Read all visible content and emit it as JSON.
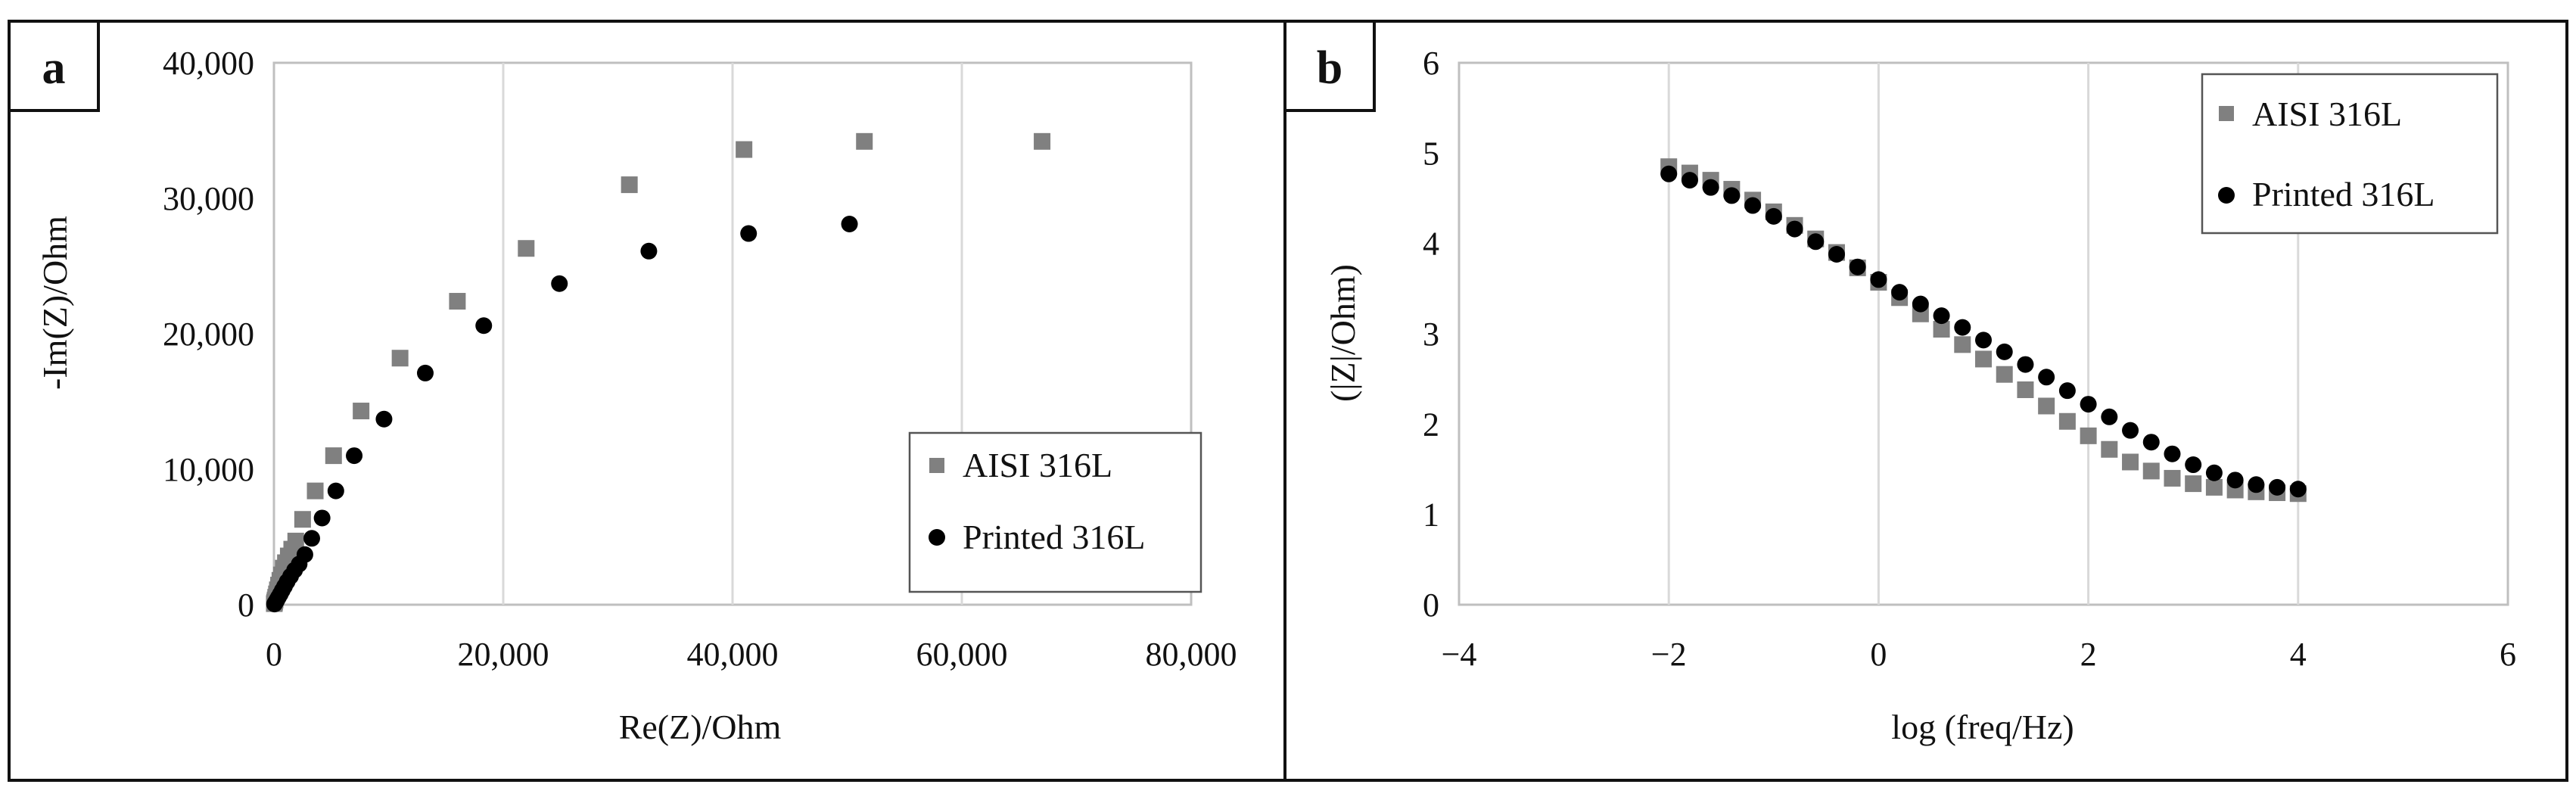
{
  "colors": {
    "aisi": "#808080",
    "printed": "#000000"
  },
  "chart_data": [
    {
      "type": "scatter",
      "panel_label": "a",
      "xlabel": "Re(Z)/Ohm",
      "ylabel": "-Im(Z)/Ohm",
      "xlim": [
        0,
        80000
      ],
      "ylim": [
        0,
        40000
      ],
      "xticks": [
        0,
        20000,
        40000,
        60000,
        80000
      ],
      "yticks": [
        0,
        10000,
        20000,
        30000,
        40000
      ],
      "x_tick_labels": [
        "0",
        "20,000",
        "40,000",
        "60,000",
        "80,000"
      ],
      "y_tick_labels": [
        "0",
        "10,000",
        "20,000",
        "30,000",
        "40,000"
      ],
      "grid": "vertical",
      "legend_position": "bottom-right",
      "series": [
        {
          "name": "AISI 316L",
          "marker": "square",
          "x": [
            30,
            60,
            100,
            150,
            220,
            300,
            400,
            520,
            650,
            820,
            1000,
            1250,
            1550,
            1900,
            2500,
            3600,
            5200,
            7600,
            11000,
            16000,
            22000,
            31000,
            41000,
            51500,
            67000
          ],
          "y": [
            80,
            200,
            350,
            550,
            800,
            1100,
            1450,
            1800,
            2200,
            2700,
            3100,
            3600,
            4100,
            4700,
            6300,
            8400,
            11000,
            14300,
            18200,
            22400,
            26300,
            31000,
            33600,
            34200,
            34200
          ]
        },
        {
          "name": "Printed 316L",
          "marker": "circle",
          "x": [
            50,
            100,
            180,
            280,
            400,
            550,
            720,
            920,
            1150,
            1450,
            1800,
            2200,
            2700,
            3300,
            4200,
            5400,
            7000,
            9600,
            13200,
            18300,
            24900,
            32700,
            41400,
            50200
          ],
          "y": [
            50,
            120,
            230,
            380,
            560,
            780,
            1050,
            1350,
            1700,
            2100,
            2550,
            3000,
            3700,
            4900,
            6400,
            8400,
            11000,
            13700,
            17100,
            20600,
            23700,
            26100,
            27400,
            28100
          ]
        }
      ]
    },
    {
      "type": "scatter",
      "panel_label": "b",
      "xlabel": "log (freq/Hz)",
      "ylabel": "(|Z|/Ohm)",
      "xlim": [
        -4,
        6
      ],
      "ylim": [
        0,
        6
      ],
      "xticks": [
        -4,
        -2,
        0,
        2,
        4,
        6
      ],
      "yticks": [
        0,
        1,
        2,
        3,
        4,
        5,
        6
      ],
      "x_tick_labels": [
        "−4",
        "−2",
        "0",
        "2",
        "4",
        "6"
      ],
      "y_tick_labels": [
        "0",
        "1",
        "2",
        "3",
        "4",
        "5",
        "6"
      ],
      "grid": "vertical",
      "legend_position": "top-right",
      "series": [
        {
          "name": "AISI 316L",
          "marker": "square",
          "x": [
            -2.0,
            -1.8,
            -1.6,
            -1.4,
            -1.2,
            -1.0,
            -0.8,
            -0.6,
            -0.4,
            -0.2,
            0.0,
            0.2,
            0.4,
            0.6,
            0.8,
            1.0,
            1.2,
            1.4,
            1.6,
            1.8,
            2.0,
            2.2,
            2.4,
            2.6,
            2.8,
            3.0,
            3.2,
            3.4,
            3.6,
            3.8,
            4.0
          ],
          "y": [
            4.85,
            4.78,
            4.7,
            4.6,
            4.48,
            4.35,
            4.2,
            4.05,
            3.9,
            3.73,
            3.57,
            3.4,
            3.22,
            3.05,
            2.88,
            2.72,
            2.55,
            2.38,
            2.2,
            2.03,
            1.87,
            1.72,
            1.58,
            1.48,
            1.4,
            1.34,
            1.3,
            1.27,
            1.25,
            1.24,
            1.23
          ]
        },
        {
          "name": "Printed 316L",
          "marker": "circle",
          "x": [
            -2.0,
            -1.8,
            -1.6,
            -1.4,
            -1.2,
            -1.0,
            -0.8,
            -0.6,
            -0.4,
            -0.2,
            0.0,
            0.2,
            0.4,
            0.6,
            0.8,
            1.0,
            1.2,
            1.4,
            1.6,
            1.8,
            2.0,
            2.2,
            2.4,
            2.6,
            2.8,
            3.0,
            3.2,
            3.4,
            3.6,
            3.8,
            4.0
          ],
          "y": [
            4.77,
            4.7,
            4.62,
            4.53,
            4.42,
            4.3,
            4.16,
            4.02,
            3.88,
            3.74,
            3.6,
            3.46,
            3.33,
            3.2,
            3.07,
            2.93,
            2.8,
            2.66,
            2.52,
            2.37,
            2.22,
            2.08,
            1.93,
            1.8,
            1.67,
            1.55,
            1.46,
            1.38,
            1.33,
            1.3,
            1.28
          ]
        }
      ]
    }
  ]
}
